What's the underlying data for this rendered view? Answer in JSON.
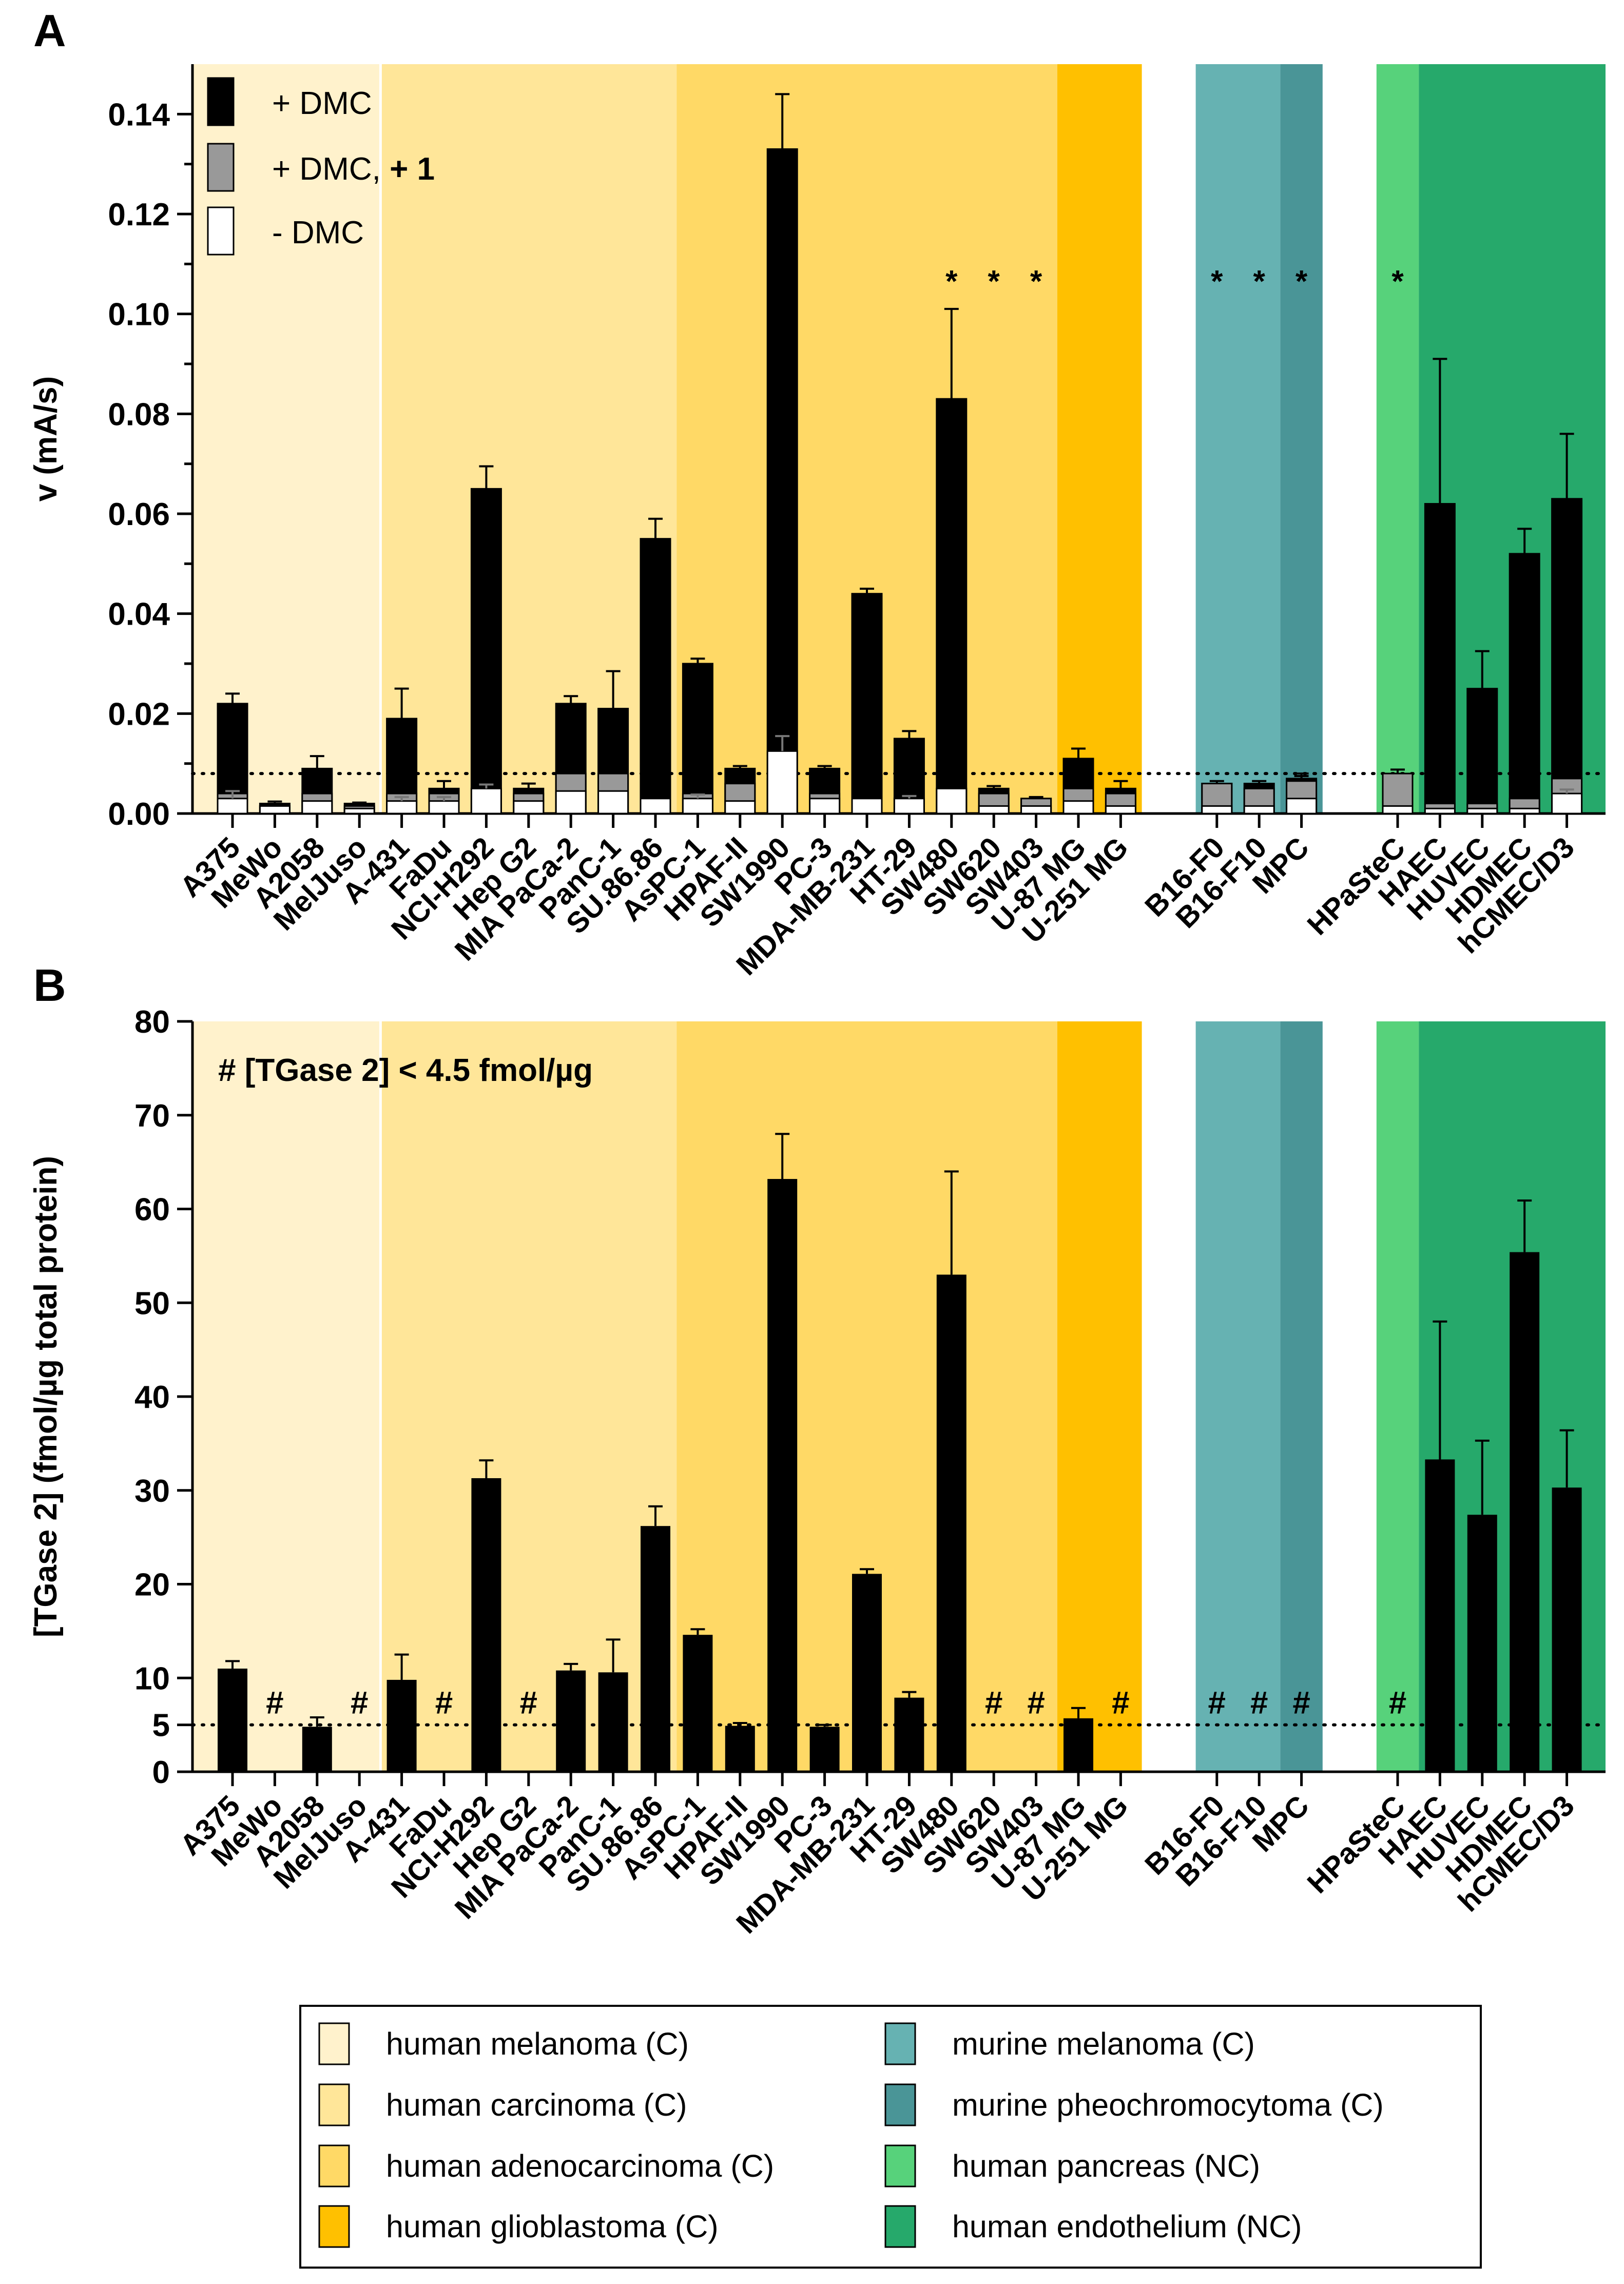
{
  "panel_labels": [
    "A",
    "B"
  ],
  "chart_data": [
    {
      "panel": "A",
      "type": "bar",
      "ylabel": "v (mA/s)",
      "ylim": [
        0,
        0.15
      ],
      "yticks": [
        "0.00",
        "0.02",
        "0.04",
        "0.06",
        "0.08",
        "0.10",
        "0.12",
        "0.14"
      ],
      "legend": {
        "position": "top-left",
        "entries": [
          {
            "label": "+ DMC",
            "color": "#000000"
          },
          {
            "label_pre": "+ DMC, ",
            "label_bold": "+ 1",
            "color": "#999999"
          },
          {
            "label": "- DMC",
            "color": "#ffffff"
          }
        ]
      },
      "threshold": 0.008,
      "stars": [
        {
          "label": "*",
          "index": 17
        },
        {
          "label": "*",
          "index": 18
        },
        {
          "label": "*",
          "index": 19
        },
        {
          "label": "*",
          "index": 22
        },
        {
          "label": "*",
          "index": 23
        },
        {
          "label": "*",
          "index": 24
        },
        {
          "label": "*",
          "index": 25
        }
      ],
      "series": [
        {
          "name": "+ DMC",
          "values": [
            0.022,
            0.002,
            0.009,
            0.002,
            0.019,
            0.005,
            0.065,
            0.005,
            0.022,
            0.021,
            0.055,
            0.03,
            0.009,
            0.133,
            0.009,
            0.044,
            0.015,
            0.083,
            0.005,
            0.003,
            0.011,
            0.005,
            0.006,
            0.006,
            0.007,
            0.008,
            0.062,
            0.025,
            0.052,
            0.063
          ],
          "errors": [
            0.002,
            0.0004,
            0.0025,
            0.0002,
            0.006,
            0.0015,
            0.0045,
            0.001,
            0.0015,
            0.0075,
            0.004,
            0.001,
            0.0005,
            0.011,
            0.0005,
            0.001,
            0.0015,
            0.018,
            0.0005,
            0.0003,
            0.002,
            0.0015,
            0.0005,
            0.0005,
            0.001,
            0.0008,
            0.029,
            0.0075,
            0.005,
            0.013
          ]
        },
        {
          "name": "+ DMC, + 1",
          "values": [
            0.004,
            0.0015,
            0.004,
            0.0015,
            0.004,
            0.004,
            0.005,
            0.004,
            0.008,
            0.008,
            0.003,
            0.004,
            0.006,
            0.007,
            0.004,
            0.003,
            0.003,
            0.005,
            0.004,
            0.003,
            0.005,
            0.004,
            0.006,
            0.005,
            0.0065,
            0.008,
            0.002,
            0.002,
            0.003,
            0.007
          ],
          "errors": [
            0,
            0,
            0,
            0,
            0,
            0,
            0,
            0,
            0.001,
            0.002,
            0,
            0,
            0,
            0,
            0,
            0,
            0,
            0,
            0,
            0,
            0,
            0,
            0,
            0,
            0.001,
            0,
            0,
            0,
            0,
            0
          ]
        },
        {
          "name": "- DMC",
          "values": [
            0.003,
            0.0015,
            0.0025,
            0.001,
            0.0025,
            0.0025,
            0.005,
            0.0025,
            0.0045,
            0.0045,
            0.003,
            0.003,
            0.0025,
            0.0125,
            0.003,
            0.003,
            0.003,
            0.005,
            0.0015,
            0.0015,
            0.0025,
            0.0015,
            0.0015,
            0.0015,
            0.003,
            0.0015,
            0.001,
            0.001,
            0.001,
            0.004
          ],
          "errors": [
            0.0015,
            0,
            0,
            0,
            0.0008,
            0.0008,
            0.0008,
            0,
            0,
            0,
            0,
            0.0008,
            0,
            0.003,
            0,
            0,
            0.0005,
            0,
            0,
            0,
            0,
            0,
            0,
            0,
            0,
            0,
            0,
            0,
            0,
            0.0008
          ]
        }
      ]
    },
    {
      "panel": "B",
      "type": "bar",
      "ylabel": "[TGase 2] (fmol/µg total protein)",
      "ylim": [
        0,
        80
      ],
      "yticks": [
        "0",
        "5",
        "10",
        "20",
        "30",
        "40",
        "50",
        "60",
        "70",
        "80"
      ],
      "ytick_values": [
        0,
        5,
        10,
        20,
        30,
        40,
        50,
        60,
        70,
        80
      ],
      "annotation": "# [TGase 2] < 4.5 fmol/µg",
      "threshold": 5,
      "hash_label": "#",
      "hash_indices": [
        1,
        3,
        5,
        7,
        18,
        19,
        21,
        22,
        23,
        24,
        25
      ],
      "series": [
        {
          "name": "[TGase 2]",
          "values": [
            11,
            null,
            4.8,
            null,
            9.8,
            null,
            31.3,
            null,
            10.8,
            10.6,
            26.2,
            14.6,
            4.9,
            63.2,
            4.8,
            21.1,
            7.9,
            53,
            null,
            null,
            5.7,
            null,
            null,
            null,
            null,
            null,
            33.3,
            27.4,
            55.4,
            30.3
          ],
          "errors": [
            0.8,
            0,
            1,
            0,
            2.7,
            0,
            1.9,
            0,
            0.7,
            3.5,
            2.1,
            0.6,
            0.3,
            4.8,
            0.2,
            0.5,
            0.6,
            11,
            0,
            0,
            1.1,
            0,
            0,
            0,
            0,
            0,
            14.7,
            7.9,
            5.5,
            6.1
          ]
        }
      ]
    }
  ],
  "categories": [
    "A375",
    "MeWo",
    "A2058",
    "MelJuso",
    "A-431",
    "FaDu",
    "NCI-H292",
    "Hep G2",
    "MIA PaCa-2",
    "PanC-1",
    "SU.86.86",
    "AsPC-1",
    "HPAF-II",
    "SW1990",
    "PC-3",
    "MDA-MB-231",
    "HT-29",
    "SW480",
    "SW620",
    "SW403",
    "U-87 MG",
    "U-251 MG",
    "B16-F0",
    "B16-F10",
    "MPC",
    "HPaSteC",
    "HAEC",
    "HUVEC",
    "HDMEC",
    "hCMEC/D3"
  ],
  "groups": [
    {
      "label": "human melanoma (C)",
      "color": "#FFF2CC",
      "from": 0,
      "to": 3
    },
    {
      "label": "human carcinoma (C)",
      "color": "#FFE699",
      "from": 4,
      "to": 10
    },
    {
      "label": "human adenocarcinoma (C)",
      "color": "#FFD966",
      "from": 11,
      "to": 19
    },
    {
      "label": "human glioblastoma (C)",
      "color": "#FFC000",
      "from": 20,
      "to": 21
    },
    {
      "label": "murine melanoma (C)",
      "color": "#66B2B2",
      "from": 22,
      "to": 23
    },
    {
      "label": "murine pheochromocytoma (C)",
      "color": "#4A9597",
      "from": 24,
      "to": 24
    },
    {
      "label": "human pancreas (NC)",
      "color": "#57D27B",
      "from": 25,
      "to": 25
    },
    {
      "label": "human endothelium (NC)",
      "color": "#26A96B",
      "from": 26,
      "to": 29
    }
  ],
  "group_legend_order": [
    0,
    1,
    2,
    3,
    4,
    5,
    6,
    7
  ]
}
